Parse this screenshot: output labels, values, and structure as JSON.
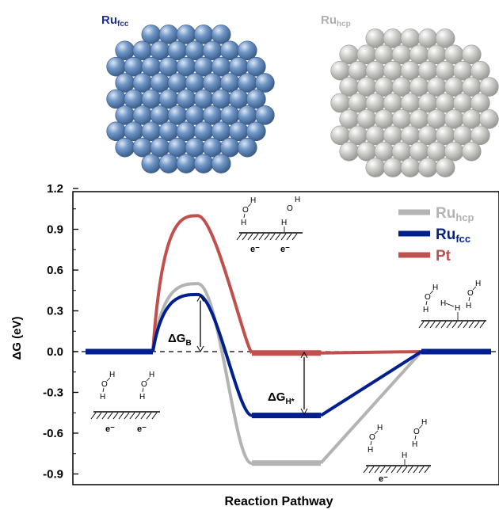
{
  "header": {
    "left_label": {
      "main": "Ru",
      "sub": "fcc",
      "color": "#1f2f8f"
    },
    "right_label": {
      "main": "Ru",
      "sub": "hcp",
      "color": "#b0b0b0"
    }
  },
  "chart_data": {
    "type": "line",
    "title": "",
    "xlabel": "Reaction Pathway",
    "ylabel": "ΔG (eV)",
    "ylim": [
      -1.0,
      1.2
    ],
    "yticks": [
      "1.2",
      "0.9",
      "0.6",
      "0.3",
      "0.0",
      "-0.3",
      "-0.6",
      "-0.9"
    ],
    "ytick_values": [
      1.2,
      0.9,
      0.6,
      0.3,
      0.0,
      -0.3,
      -0.6,
      -0.9
    ],
    "x_stages": [
      0,
      1,
      2,
      3,
      4
    ],
    "legend_position": "top-right",
    "series": [
      {
        "name": "Ru",
        "sub": "hcp",
        "color": "#b3b3b3",
        "barrier": 0.5,
        "h_ads": -0.82
      },
      {
        "name": "Ru",
        "sub": "fcc",
        "color": "#001f8f",
        "barrier": 0.42,
        "h_ads": -0.47
      },
      {
        "name": "Pt",
        "sub": "",
        "color": "#c0504d",
        "barrier": 1.0,
        "h_ads": -0.01
      }
    ],
    "annotations": {
      "dgb": {
        "main": "ΔG",
        "sub": "B"
      },
      "dgh": {
        "main": "ΔG",
        "sub": "H*"
      }
    },
    "electron": "e⁻"
  },
  "icons": {
    "water": "water-molecule-icon",
    "surface": "hatched-surface-icon"
  },
  "colors": {
    "fcc_cluster": "#6b8fbd",
    "hcp_cluster": "#c8c8c4"
  }
}
